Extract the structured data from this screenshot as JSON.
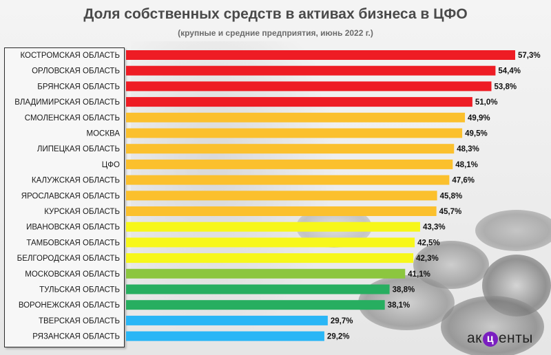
{
  "chart_data": {
    "type": "bar",
    "orientation": "horizontal",
    "title": "Доля собственных средств в активах бизнеса в ЦФО",
    "subtitle": "(крупные и средние предприятия, июнь 2022 г.)",
    "categories": [
      "КОСТРОМСКАЯ ОБЛАСТЬ",
      "ОРЛОВСКАЯ ОБЛАСТЬ",
      "БРЯНСКАЯ ОБЛАСТЬ",
      "ВЛАДИМИРСКАЯ ОБЛАСТЬ",
      "СМОЛЕНСКАЯ ОБЛАСТЬ",
      "МОСКВА",
      "ЛИПЕЦКАЯ ОБЛАСТЬ",
      "ЦФО",
      "КАЛУЖСКАЯ ОБЛАСТЬ",
      "ЯРОСЛАВСКАЯ ОБЛАСТЬ",
      "КУРСКАЯ ОБЛАСТЬ",
      "ИВАНОВСКАЯ ОБЛАСТЬ",
      "ТАМБОВСКАЯ ОБЛАСТЬ",
      "БЕЛГОРОДСКАЯ ОБЛАСТЬ",
      "МОСКОВСКАЯ ОБЛАСТЬ",
      "ТУЛЬСКАЯ ОБЛАСТЬ",
      "ВОРОНЕЖСКАЯ ОБЛАСТЬ",
      "ТВЕРСКАЯ ОБЛАСТЬ",
      "РЯЗАНСКАЯ ОБЛАСТЬ"
    ],
    "values": [
      57.3,
      54.4,
      53.8,
      51.0,
      49.9,
      49.5,
      48.3,
      48.1,
      47.6,
      45.8,
      45.7,
      43.3,
      42.5,
      42.3,
      41.1,
      38.8,
      38.1,
      29.7,
      29.2
    ],
    "value_labels": [
      "57,3%",
      "54,4%",
      "53,8%",
      "51,0%",
      "49,9%",
      "49,5%",
      "48,3%",
      "48,1%",
      "47,6%",
      "45,8%",
      "45,7%",
      "43,3%",
      "42,5%",
      "42,3%",
      "41,1%",
      "38,8%",
      "38,1%",
      "29,7%",
      "29,2%"
    ],
    "bar_colors": [
      "#ee1c24",
      "#ee1c24",
      "#ee1c24",
      "#ee1c24",
      "#fbc02d",
      "#fbc02d",
      "#fbc02d",
      "#fbc02d",
      "#fbc02d",
      "#fbc02d",
      "#fbc02d",
      "#f7f71a",
      "#f7f71a",
      "#f7f71a",
      "#8cc63f",
      "#27ae60",
      "#27ae60",
      "#29b6f6",
      "#29b6f6"
    ],
    "xlim": [
      0,
      57.3
    ],
    "grid": false,
    "legend": "none"
  },
  "logo": {
    "before": "ак",
    "mark": "ц",
    "after": "енты"
  }
}
